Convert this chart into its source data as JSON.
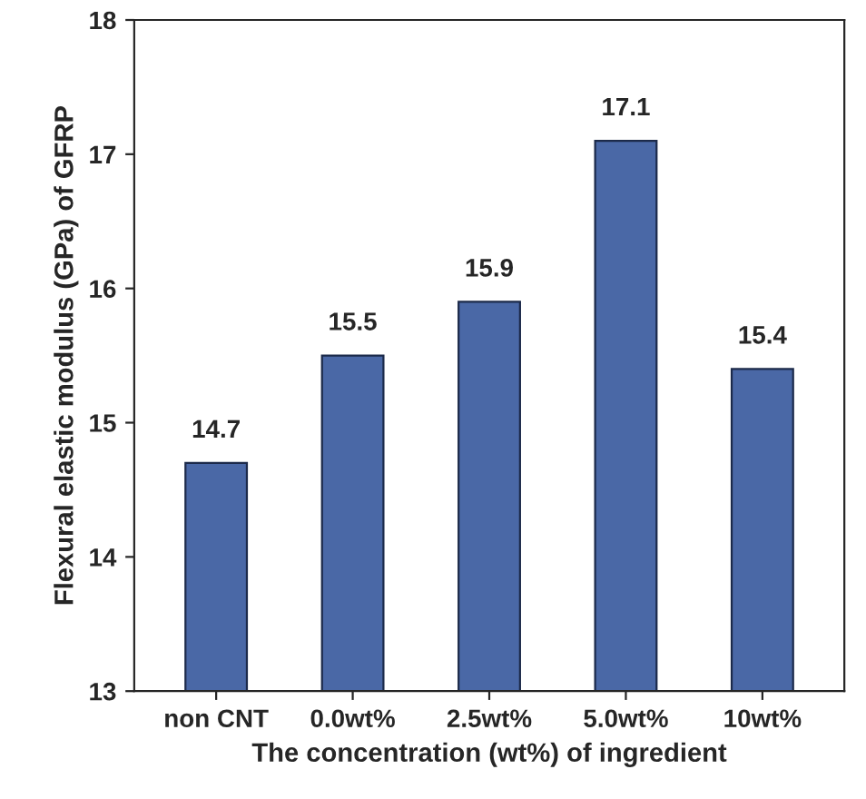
{
  "chart_data": {
    "type": "bar",
    "categories": [
      "non CNT",
      "0.0wt%",
      "2.5wt%",
      "5.0wt%",
      "10wt%"
    ],
    "values": [
      14.7,
      15.5,
      15.9,
      17.1,
      15.4
    ],
    "color": "#4a68a6",
    "xlabel": "The concentration (wt%) of ingredient",
    "ylabel": "Flexural elastic modulus (GPa) of GFRP",
    "ylim": [
      13,
      18
    ],
    "yticks": [
      13,
      14,
      15,
      16,
      17,
      18
    ],
    "data_labels": true,
    "grid": false
  }
}
